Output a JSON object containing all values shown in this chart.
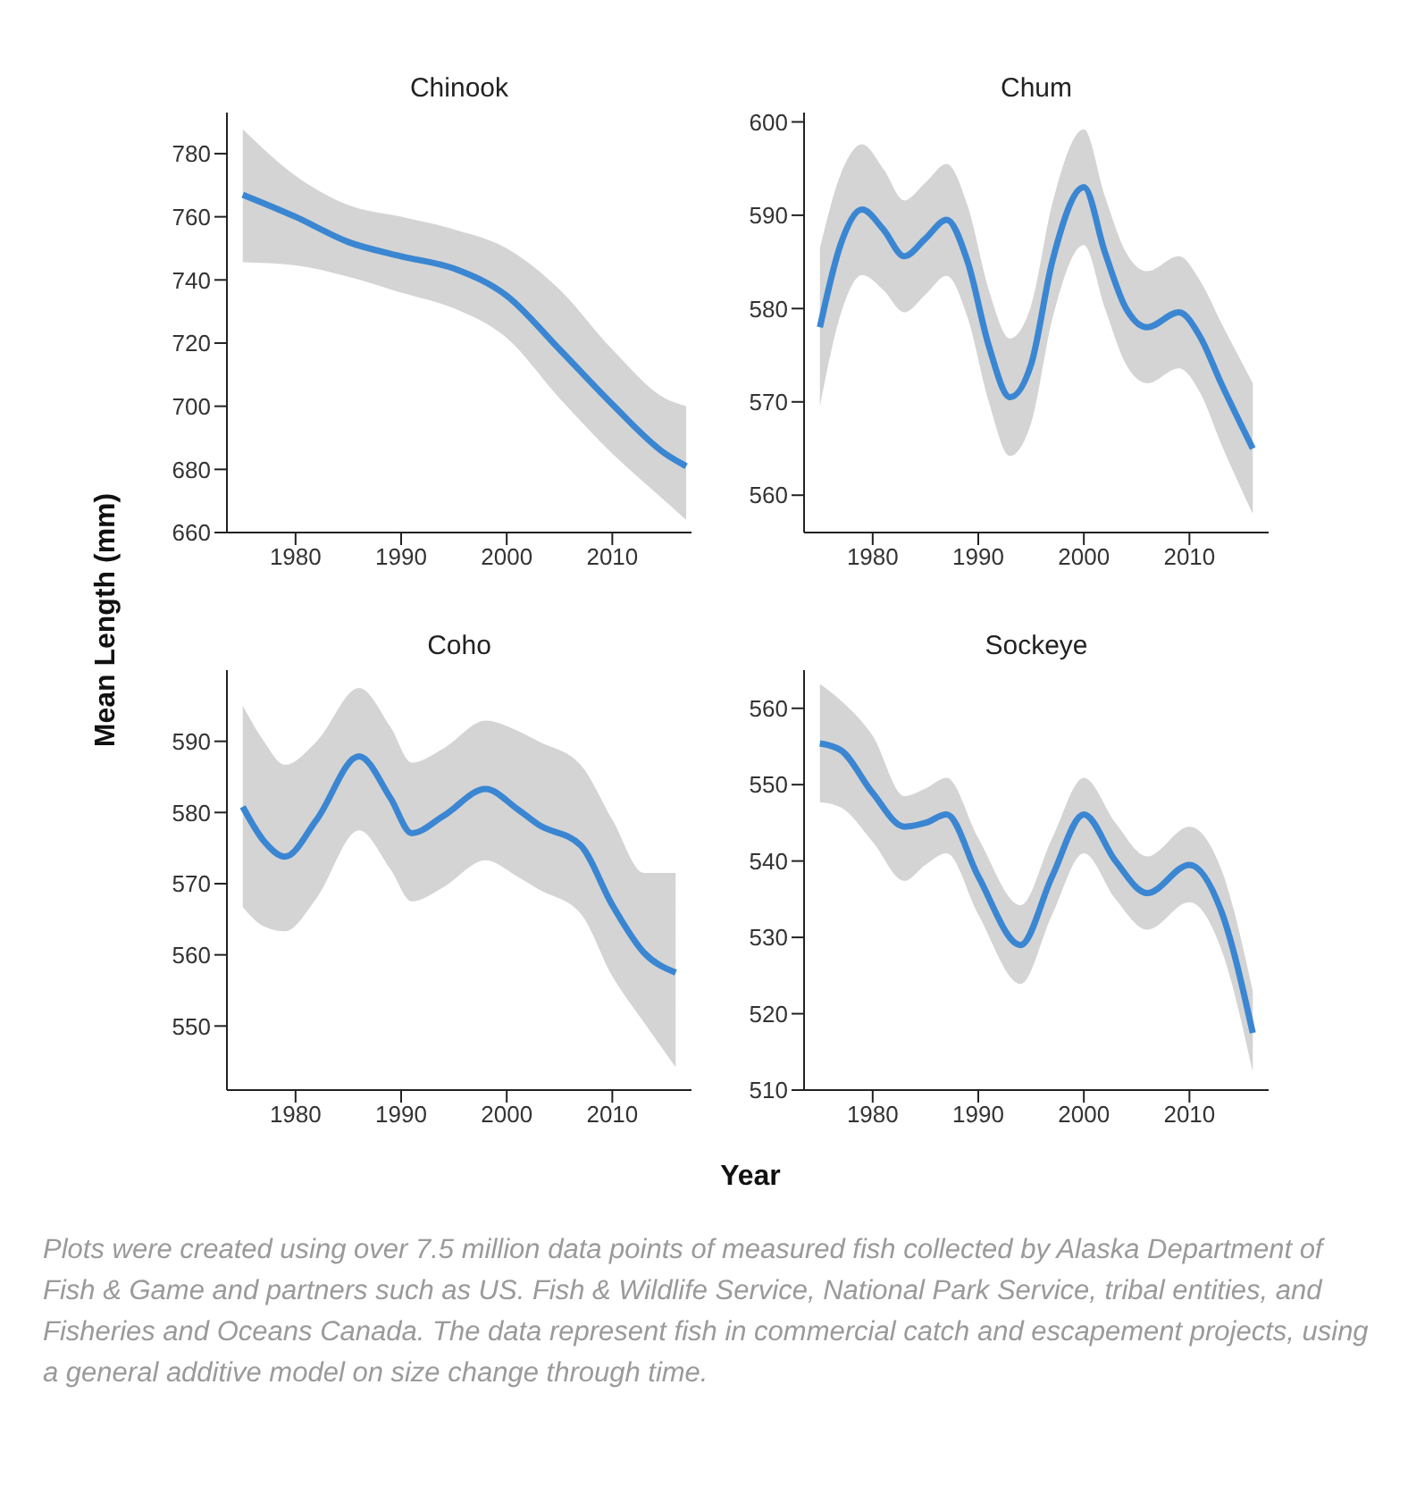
{
  "chart_data": [
    {
      "type": "line",
      "title": "Chinook",
      "ylabel": "Mean Length (mm)",
      "xlim": [
        1973.5,
        2017.5
      ],
      "xticks": [
        1980,
        1990,
        2000,
        2010
      ],
      "ylim": [
        660,
        793
      ],
      "yticks": [
        660,
        680,
        700,
        720,
        740,
        760,
        780
      ],
      "grid": false,
      "legend": false,
      "marker": "none",
      "series": [
        {
          "color": "#3a86d2",
          "x": [
            1975,
            1980,
            1985,
            1990,
            1995,
            2000,
            2005,
            2010,
            2015,
            2017
          ],
          "values": [
            767,
            760,
            752,
            747.5,
            743.6,
            735,
            718,
            700.6,
            685,
            681
          ],
          "upper": [
            787.7,
            773,
            763.7,
            760,
            756,
            750,
            737,
            718,
            702.5,
            700
          ],
          "lower": [
            745.6,
            744.6,
            741,
            736,
            731,
            721.6,
            702.5,
            685,
            670,
            664
          ]
        }
      ]
    },
    {
      "type": "line",
      "title": "Chum",
      "xlim": [
        1973.5,
        2017.5
      ],
      "xticks": [
        1980,
        1990,
        2000,
        2010
      ],
      "ylim": [
        556,
        601
      ],
      "yticks": [
        560,
        570,
        580,
        590,
        600
      ],
      "grid": false,
      "legend": false,
      "marker": "none",
      "series": [
        {
          "color": "#3a86d2",
          "x": [
            1975,
            1977,
            1979,
            1981,
            1983,
            1985,
            1987,
            1989,
            1991,
            1993,
            1995,
            1997,
            2000,
            2002,
            2004,
            2006,
            2009,
            2011,
            2013,
            2016
          ],
          "values": [
            578,
            587,
            590.6,
            588.5,
            585.6,
            587.5,
            589.5,
            585,
            576,
            570.5,
            574,
            585,
            593,
            586,
            580,
            578,
            579.6,
            577,
            572,
            565
          ],
          "upper": [
            586.5,
            594.5,
            597.6,
            595,
            591.6,
            593.5,
            595.5,
            591,
            582,
            576.8,
            580.3,
            591.2,
            599.2,
            592,
            586,
            584,
            585.6,
            583,
            578.5,
            572
          ],
          "lower": [
            569.5,
            579.5,
            583.6,
            582,
            579.6,
            581.5,
            583.5,
            579,
            570,
            564.2,
            567.7,
            578.8,
            586.8,
            580,
            574,
            572,
            573.6,
            571,
            565.5,
            558
          ]
        }
      ]
    },
    {
      "type": "line",
      "title": "Coho",
      "xlim": [
        1973.5,
        2017.5
      ],
      "xticks": [
        1980,
        1990,
        2000,
        2010
      ],
      "ylim": [
        541,
        600
      ],
      "yticks": [
        550,
        560,
        570,
        580,
        590
      ],
      "grid": false,
      "legend": false,
      "marker": "none",
      "series": [
        {
          "color": "#3a86d2",
          "x": [
            1975,
            1977,
            1979,
            1982,
            1986,
            1989,
            1991,
            1994,
            1998,
            2001,
            2003,
            2007,
            2010,
            2013,
            2016
          ],
          "values": [
            580.8,
            576,
            573.8,
            579,
            587.9,
            582,
            577.1,
            579.5,
            583.3,
            580.5,
            578.3,
            575.4,
            567,
            560.3,
            557.5
          ],
          "upper": [
            595,
            590,
            586.7,
            590,
            597.5,
            592,
            587,
            589,
            592.9,
            591.5,
            590,
            586.7,
            579,
            571.5,
            571.5
          ],
          "lower": [
            566.7,
            564,
            563.3,
            568,
            577.5,
            572,
            567.5,
            569.5,
            573.3,
            571,
            569.2,
            565.8,
            557,
            550.5,
            544.2
          ]
        }
      ]
    },
    {
      "type": "line",
      "title": "Sockeye",
      "xlabel": "Year",
      "xlim": [
        1973.5,
        2017.5
      ],
      "xticks": [
        1980,
        1990,
        2000,
        2010
      ],
      "ylim": [
        510,
        565
      ],
      "yticks": [
        510,
        520,
        530,
        540,
        550,
        560
      ],
      "grid": false,
      "legend": false,
      "marker": "none",
      "annotations": [
        "Plots were created using over 7.5 million data points of measured fish collected by Alaska Department of Fish & Game and partners such as US. Fish & Wildlife Service, National Park Service, tribal entities, and Fisheries and Oceans Canada. The data represent fish in commercial catch and escapement projects, using a general additive model on size change through time."
      ],
      "series": [
        {
          "color": "#3a86d2",
          "x": [
            1975,
            1977,
            1980,
            1983,
            1985,
            1987,
            1990,
            1994,
            1997,
            2000,
            2003,
            2006,
            2010,
            2013,
            2016
          ],
          "values": [
            555.4,
            554.5,
            548.9,
            544.5,
            545,
            546.1,
            538,
            529,
            538,
            546.1,
            540,
            535.8,
            539.5,
            533.5,
            517.5
          ],
          "upper": [
            563.2,
            561,
            556.4,
            548.5,
            549.5,
            550.9,
            543,
            534.2,
            543,
            550.9,
            545,
            540.6,
            544.5,
            539,
            523
          ],
          "lower": [
            547.7,
            547,
            542.5,
            537.4,
            539.5,
            541,
            533,
            523.9,
            533,
            541,
            535,
            531,
            534.6,
            528.5,
            512.4
          ]
        }
      ]
    }
  ]
}
